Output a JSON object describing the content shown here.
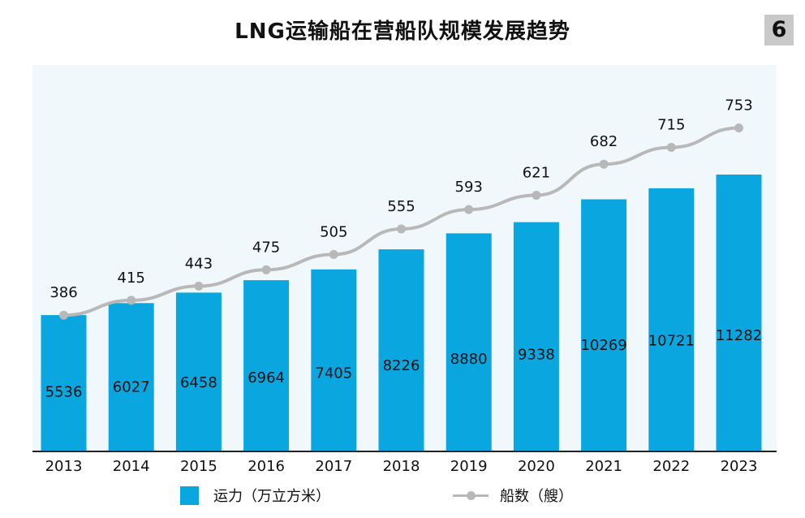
{
  "page_number": "6",
  "chart_data": {
    "type": "bar",
    "title": "LNG运输船在营船队规模发展趋势",
    "categories": [
      "2013",
      "2014",
      "2015",
      "2016",
      "2017",
      "2018",
      "2019",
      "2020",
      "2021",
      "2022",
      "2023"
    ],
    "series": [
      {
        "name": "运力（万立方米）",
        "type": "bar",
        "color": "#0aa6e0",
        "values": [
          5536,
          6027,
          6458,
          6964,
          7405,
          8226,
          8880,
          9338,
          10269,
          10721,
          11282
        ]
      },
      {
        "name": "船数（艘）",
        "type": "line",
        "color": "#b8b8b8",
        "values": [
          386,
          415,
          443,
          475,
          505,
          555,
          593,
          621,
          682,
          715,
          753
        ]
      }
    ],
    "bar_ylim": [
      0,
      15000
    ],
    "line_ylim": [
      0,
      1000
    ],
    "grid": false,
    "legend_position": "bottom"
  }
}
